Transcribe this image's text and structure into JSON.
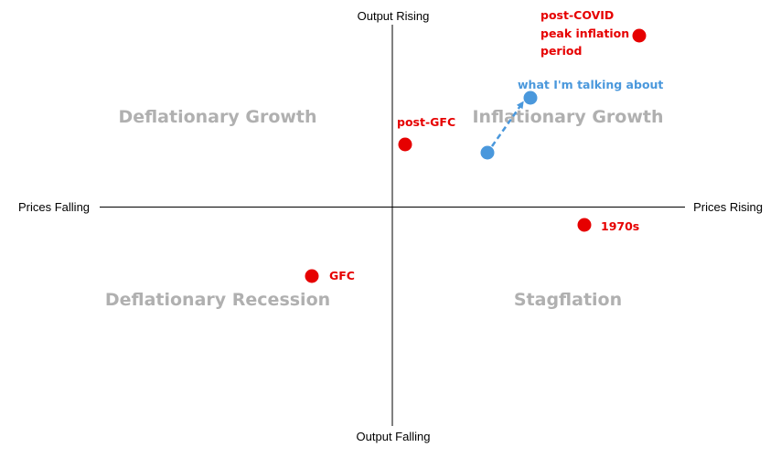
{
  "axes": {
    "top": "Output Rising",
    "bottom": "Output Falling",
    "left": "Prices Falling",
    "right": "Prices Rising",
    "line_color": "#000000"
  },
  "quadrants": {
    "top_left": "Deflationary Growth",
    "top_right": "Inflationary Growth",
    "bottom_left": "Deflationary Recession",
    "bottom_right": "Stagflation",
    "color": "#b0b0b0"
  },
  "points": [
    {
      "id": "post-covid",
      "label_lines": [
        "post-COVID",
        "peak inflation",
        "period"
      ],
      "color": "#e60000"
    },
    {
      "id": "post-gfc",
      "label_lines": [
        "post-GFC"
      ],
      "color": "#e60000"
    },
    {
      "id": "1970s",
      "label_lines": [
        "1970s"
      ],
      "color": "#e60000"
    },
    {
      "id": "gfc",
      "label_lines": [
        "GFC"
      ],
      "color": "#e60000"
    },
    {
      "id": "current",
      "label_lines": [
        "what I'm talking about"
      ],
      "color": "#4a98dc"
    }
  ],
  "arrow": {
    "from": "current-start",
    "to": "current",
    "style": "dashed",
    "color": "#4a98dc"
  }
}
